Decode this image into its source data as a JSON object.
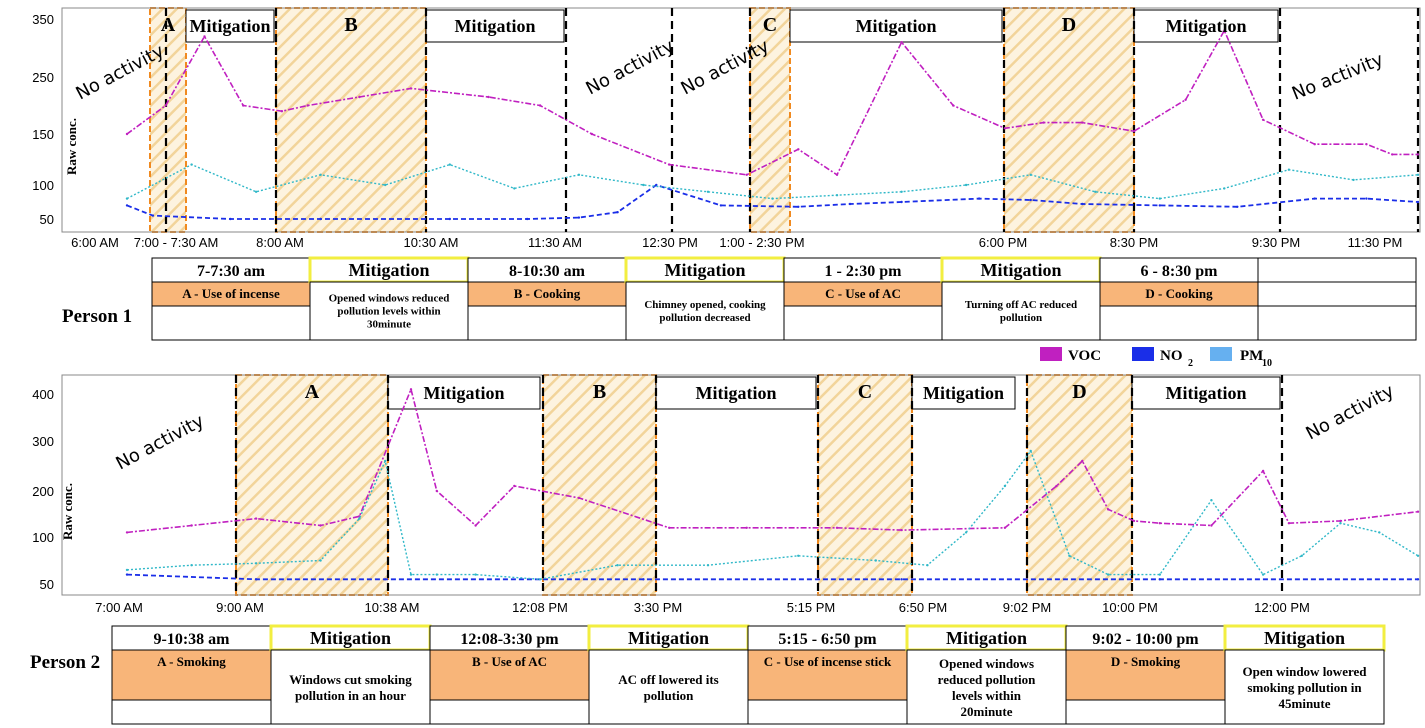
{
  "colors": {
    "voc": "#c020c0",
    "no2": "#1a2ee8",
    "pm10": "#30b8c8",
    "hatch": "#f2d49a",
    "box_border": "#f08a20",
    "cell_fill": "#f8b579",
    "mitig_border": "#f2ee40"
  },
  "legend": {
    "voc": "VOC",
    "no2": "NO",
    "no2_sub": "2",
    "pm10": "PM",
    "pm10_sub": "10"
  },
  "chart_data": [
    {
      "type": "line",
      "title": "Person 1",
      "ylabel": "Raw conc.",
      "yticks": [
        50,
        100,
        150,
        250,
        350
      ],
      "ylim": [
        30,
        360
      ],
      "xticks": [
        "6:00 AM",
        "7:00 - 7:30 AM",
        "8:00 AM",
        "10:30  AM",
        "11:30 AM",
        "12:30 PM",
        "1:00 - 2:30 PM",
        "6:00 PM",
        "8:30 PM",
        "9:30 PM",
        "11:30 PM"
      ],
      "series": [
        {
          "name": "VOC",
          "x": [
            0,
            3,
            6,
            9,
            12,
            14,
            18,
            22,
            28,
            32,
            36,
            42,
            48,
            52,
            55,
            60,
            64,
            68,
            71,
            74,
            78,
            82,
            85,
            88,
            92,
            96,
            98,
            100
          ],
          "values": [
            150,
            200,
            320,
            200,
            190,
            200,
            215,
            230,
            215,
            200,
            150,
            120,
            110,
            135,
            110,
            310,
            200,
            160,
            170,
            170,
            155,
            210,
            330,
            175,
            140,
            140,
            130,
            130
          ]
        },
        {
          "name": "NO2",
          "x": [
            0,
            2,
            8,
            15,
            25,
            31,
            35,
            38,
            41,
            46,
            52,
            56,
            60,
            66,
            70,
            74,
            80,
            86,
            92,
            96,
            100
          ],
          "values": [
            70,
            55,
            50,
            50,
            50,
            50,
            52,
            60,
            100,
            70,
            68,
            72,
            75,
            80,
            78,
            72,
            70,
            68,
            80,
            80,
            75
          ]
        },
        {
          "name": "PM10",
          "x": [
            0,
            5,
            10,
            15,
            20,
            25,
            30,
            35,
            40,
            45,
            50,
            55,
            60,
            65,
            70,
            75,
            80,
            85,
            90,
            95,
            100
          ],
          "values": [
            80,
            120,
            90,
            110,
            100,
            120,
            95,
            110,
            100,
            90,
            80,
            85,
            90,
            100,
            110,
            90,
            80,
            95,
            115,
            105,
            110
          ]
        }
      ],
      "regions": [
        {
          "label": "A",
          "kind": "event"
        },
        {
          "label": "Mitigation",
          "kind": "mitigation"
        },
        {
          "label": "B",
          "kind": "event"
        },
        {
          "label": "Mitigation",
          "kind": "mitigation"
        },
        {
          "label": "C",
          "kind": "event"
        },
        {
          "label": "Mitigation",
          "kind": "mitigation"
        },
        {
          "label": "D",
          "kind": "event"
        },
        {
          "label": "Mitigation",
          "kind": "mitigation"
        }
      ],
      "annotations": [
        "No activity",
        "No activity",
        "No activity",
        "No   activity"
      ]
    },
    {
      "type": "line",
      "title": "Person 2",
      "ylabel": "Raw conc.",
      "yticks": [
        50,
        100,
        200,
        300,
        400
      ],
      "ylim": [
        30,
        420
      ],
      "xticks": [
        "7:00 AM",
        "9:00 AM",
        "10:38  AM",
        "12:08 PM",
        "3:30 PM",
        "5:15 PM",
        "6:50 PM",
        "9:02 PM",
        "10:00 PM",
        "12:00 PM"
      ],
      "series": [
        {
          "name": "VOC",
          "x": [
            0,
            5,
            10,
            15,
            18,
            22,
            24,
            27,
            30,
            35,
            42,
            48,
            55,
            60,
            68,
            72,
            74,
            76,
            78,
            80,
            84,
            88,
            90,
            94,
            100
          ],
          "values": [
            110,
            125,
            140,
            125,
            145,
            410,
            200,
            125,
            210,
            185,
            120,
            120,
            120,
            115,
            120,
            210,
            260,
            160,
            135,
            130,
            125,
            240,
            130,
            135,
            155
          ]
        },
        {
          "name": "NO2",
          "x": [
            0,
            10,
            20,
            40,
            60,
            80,
            100
          ],
          "values": [
            60,
            55,
            55,
            55,
            55,
            55,
            55
          ]
        },
        {
          "name": "PM10",
          "x": [
            0,
            5,
            10,
            15,
            18,
            20,
            22,
            24,
            27,
            32,
            38,
            45,
            52,
            58,
            62,
            65,
            68,
            70,
            73,
            76,
            80,
            84,
            88,
            91,
            94,
            97,
            100
          ],
          "values": [
            65,
            70,
            72,
            75,
            140,
            260,
            60,
            60,
            60,
            55,
            70,
            70,
            80,
            75,
            70,
            110,
            210,
            280,
            80,
            60,
            60,
            180,
            60,
            80,
            130,
            110,
            80
          ]
        }
      ],
      "regions": [
        {
          "label": "A",
          "kind": "event"
        },
        {
          "label": "Mitigation",
          "kind": "mitigation"
        },
        {
          "label": "B",
          "kind": "event"
        },
        {
          "label": "Mitigation",
          "kind": "mitigation"
        },
        {
          "label": "C",
          "kind": "event"
        },
        {
          "label": "Mitigation",
          "kind": "mitigation"
        },
        {
          "label": "D",
          "kind": "event"
        },
        {
          "label": "Mitigation",
          "kind": "mitigation"
        }
      ],
      "annotations": [
        "No activity",
        "No activity"
      ]
    }
  ],
  "tables": [
    {
      "person": "Person 1",
      "columns": [
        {
          "time": "7-7:30 am",
          "event": "A - Use of incense",
          "desc": ""
        },
        {
          "time": "Mitigation",
          "event": "",
          "desc": "Opened windows reduced pollution levels within 30minute"
        },
        {
          "time": "8-10:30 am",
          "event": "B - Cooking",
          "desc": ""
        },
        {
          "time": "Mitigation",
          "event": "",
          "desc": "Chimney opened, cooking pollution decreased"
        },
        {
          "time": "1 - 2:30 pm",
          "event": "C - Use of AC",
          "desc": ""
        },
        {
          "time": "Mitigation",
          "event": "",
          "desc": "Turning off AC reduced pollution"
        },
        {
          "time": "6 - 8:30 pm",
          "event": "D - Cooking",
          "desc": ""
        },
        {
          "time": "",
          "event": "",
          "desc": ""
        }
      ]
    },
    {
      "person": "Person 2",
      "columns": [
        {
          "time": "9-10:38 am",
          "event": "A - Smoking",
          "desc": ""
        },
        {
          "time": "Mitigation",
          "event": "",
          "desc": "Windows cut smoking pollution in an hour"
        },
        {
          "time": "12:08-3:30 pm",
          "event": "B - Use of AC",
          "desc": ""
        },
        {
          "time": "Mitigation",
          "event": "",
          "desc": "AC off lowered its pollution"
        },
        {
          "time": "5:15 - 6:50 pm",
          "event": "C - Use of incense stick",
          "desc": ""
        },
        {
          "time": "Mitigation",
          "event": "",
          "desc": "Opened windows reduced pollution levels within  20minute"
        },
        {
          "time": "9:02 - 10:00 pm",
          "event": "D - Smoking",
          "desc": ""
        },
        {
          "time": "Mitigation",
          "event": "",
          "desc": "Open window lowered smoking pollution in 45minute"
        }
      ]
    }
  ]
}
